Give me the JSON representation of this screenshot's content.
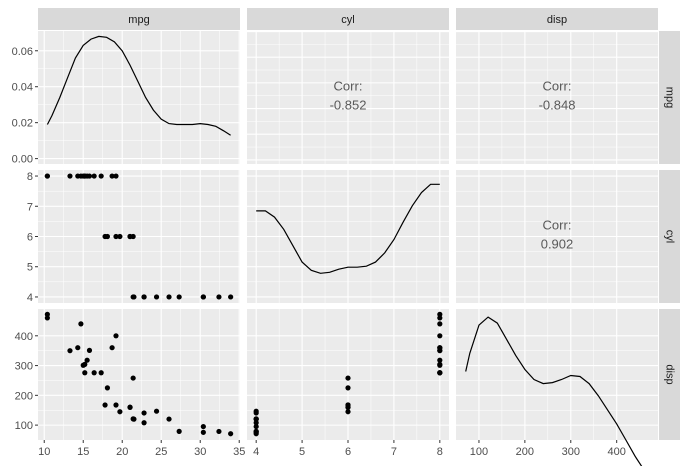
{
  "chart_data": {
    "type": "scatter-matrix",
    "variables": [
      "mpg",
      "cyl",
      "disp"
    ],
    "grid": true,
    "axes": {
      "mpg": {
        "range": [
          9.2,
          35.1
        ],
        "ticks": [
          10,
          15,
          20,
          25,
          30,
          35
        ]
      },
      "cyl": {
        "range": [
          3.8,
          8.2
        ],
        "ticks": [
          4,
          5,
          6,
          7,
          8
        ]
      },
      "disp": {
        "range": [
          50,
          490
        ],
        "ticks": [
          100,
          200,
          300,
          400
        ]
      }
    },
    "density_y_range": [
      -0.003,
      0.071
    ],
    "density_y_ticks": [
      "0.00",
      "0.02",
      "0.04",
      "0.06"
    ],
    "correlations": [
      {
        "row": "mpg",
        "col": "cyl",
        "label": "Corr:",
        "value": "-0.852"
      },
      {
        "row": "mpg",
        "col": "disp",
        "label": "Corr:",
        "value": "-0.848"
      },
      {
        "row": "cyl",
        "col": "disp",
        "label": "Corr:",
        "value": "0.902"
      }
    ],
    "densities": {
      "mpg": [
        [
          10.4,
          0.019
        ],
        [
          11,
          0.024
        ],
        [
          12,
          0.034
        ],
        [
          13,
          0.045
        ],
        [
          14,
          0.056
        ],
        [
          15,
          0.063
        ],
        [
          16,
          0.0665
        ],
        [
          17,
          0.068
        ],
        [
          18,
          0.0675
        ],
        [
          19,
          0.065
        ],
        [
          20,
          0.06
        ],
        [
          21,
          0.052
        ],
        [
          22,
          0.043
        ],
        [
          23,
          0.034
        ],
        [
          24,
          0.027
        ],
        [
          25,
          0.022
        ],
        [
          26,
          0.0195
        ],
        [
          27,
          0.019
        ],
        [
          28,
          0.019
        ],
        [
          29,
          0.019
        ],
        [
          30,
          0.0195
        ],
        [
          31,
          0.019
        ],
        [
          32,
          0.018
        ],
        [
          33,
          0.0155
        ],
        [
          33.9,
          0.013
        ]
      ],
      "cyl": [
        [
          4,
          0.95
        ],
        [
          4.2,
          0.95
        ],
        [
          4.4,
          0.92
        ],
        [
          4.6,
          0.86
        ],
        [
          4.8,
          0.78
        ],
        [
          5,
          0.7
        ],
        [
          5.2,
          0.66
        ],
        [
          5.4,
          0.645
        ],
        [
          5.6,
          0.65
        ],
        [
          5.8,
          0.665
        ],
        [
          6,
          0.675
        ],
        [
          6.2,
          0.675
        ],
        [
          6.4,
          0.68
        ],
        [
          6.6,
          0.7
        ],
        [
          6.8,
          0.745
        ],
        [
          7,
          0.81
        ],
        [
          7.2,
          0.895
        ],
        [
          7.4,
          0.975
        ],
        [
          7.6,
          1.04
        ],
        [
          7.8,
          1.08
        ],
        [
          8,
          1.08
        ]
      ],
      "disp": [
        [
          71.1,
          0.84
        ],
        [
          80,
          0.93
        ],
        [
          100,
          1.07
        ],
        [
          120,
          1.11
        ],
        [
          140,
          1.08
        ],
        [
          160,
          1.0
        ],
        [
          180,
          0.92
        ],
        [
          200,
          0.85
        ],
        [
          220,
          0.8
        ],
        [
          240,
          0.78
        ],
        [
          260,
          0.785
        ],
        [
          280,
          0.8
        ],
        [
          300,
          0.82
        ],
        [
          320,
          0.815
        ],
        [
          340,
          0.78
        ],
        [
          360,
          0.72
        ],
        [
          380,
          0.65
        ],
        [
          400,
          0.58
        ],
        [
          420,
          0.5
        ],
        [
          440,
          0.42
        ],
        [
          460,
          0.35
        ],
        [
          472,
          0.31
        ]
      ]
    },
    "density_rel_range": [
      0.5,
      1.15
    ],
    "points": {
      "mpg": [
        21,
        21,
        22.8,
        21.4,
        18.7,
        18.1,
        14.3,
        24.4,
        22.8,
        19.2,
        17.8,
        16.4,
        17.3,
        15.2,
        10.4,
        10.4,
        14.7,
        32.4,
        30.4,
        33.9,
        21.5,
        15.5,
        15.2,
        13.3,
        19.2,
        27.3,
        26,
        30.4,
        15.8,
        19.7,
        15,
        21.4
      ],
      "cyl": [
        6,
        6,
        4,
        6,
        8,
        6,
        8,
        4,
        4,
        6,
        6,
        8,
        8,
        8,
        8,
        8,
        8,
        4,
        4,
        4,
        4,
        8,
        8,
        8,
        8,
        4,
        4,
        4,
        8,
        6,
        8,
        4
      ],
      "disp": [
        160,
        160,
        108,
        258,
        360,
        225,
        360,
        146.7,
        140.8,
        167.6,
        167.6,
        275.8,
        275.8,
        275.8,
        472,
        460,
        440,
        78.7,
        75.7,
        71.1,
        120.1,
        318,
        304,
        350,
        400,
        79,
        120.3,
        95.1,
        351,
        145,
        301,
        121
      ]
    }
  },
  "colors": {
    "panel": "#ebebeb",
    "strip": "#d9d9d9",
    "grid_major": "#ffffff",
    "text": "#4d4d4d",
    "corr_text": "#595959",
    "ink": "#000000"
  }
}
